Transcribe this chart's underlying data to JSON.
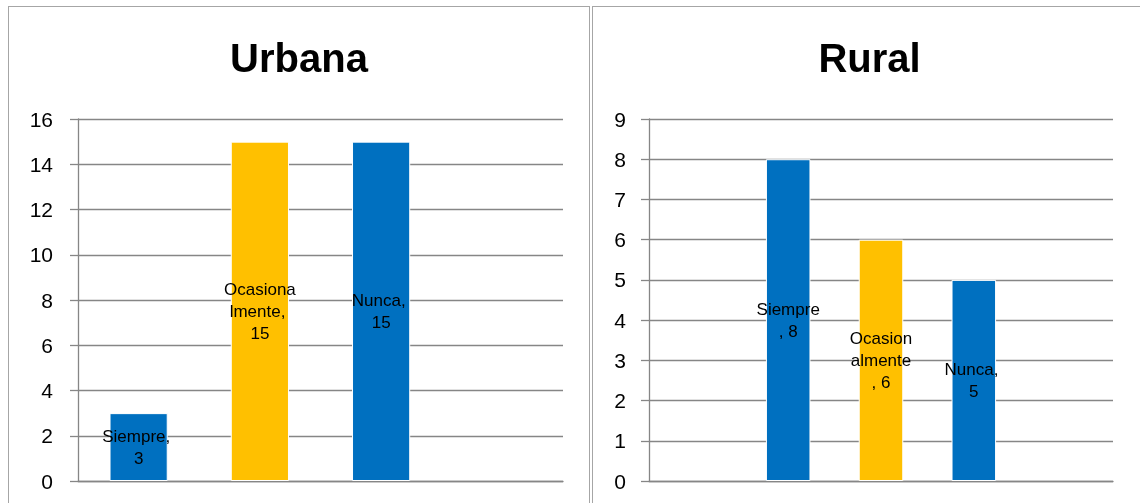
{
  "chart_data": [
    {
      "type": "bar",
      "title": "Urbana",
      "categories": [
        null,
        null,
        null,
        null
      ],
      "values": [
        3,
        15,
        15,
        null
      ],
      "colors": [
        "#0070c0",
        "#ffc000",
        "#0070c0",
        null
      ],
      "value_labels": [
        "Siempre, 3",
        "Ocasionalmente, 15",
        "Nunca, 15",
        null
      ],
      "ylim": [
        0,
        16
      ],
      "yticks": [
        0,
        2,
        4,
        6,
        8,
        10,
        12,
        14,
        16
      ],
      "grid": "y",
      "tick_labels": "y"
    },
    {
      "type": "bar",
      "title": "Rural",
      "categories": [
        null,
        null,
        null,
        null,
        null
      ],
      "values": [
        null,
        8,
        6,
        5,
        null
      ],
      "colors": [
        null,
        "#0070c0",
        "#ffc000",
        "#0070c0",
        null
      ],
      "value_labels": [
        null,
        "Siempre, 8",
        "Ocasionalmente, 6",
        "Nunca, 5",
        null
      ],
      "ylim": [
        0,
        9
      ],
      "yticks": [
        0,
        1,
        2,
        3,
        4,
        5,
        6,
        7,
        8,
        9
      ],
      "grid": "y",
      "tick_labels": "y"
    }
  ]
}
